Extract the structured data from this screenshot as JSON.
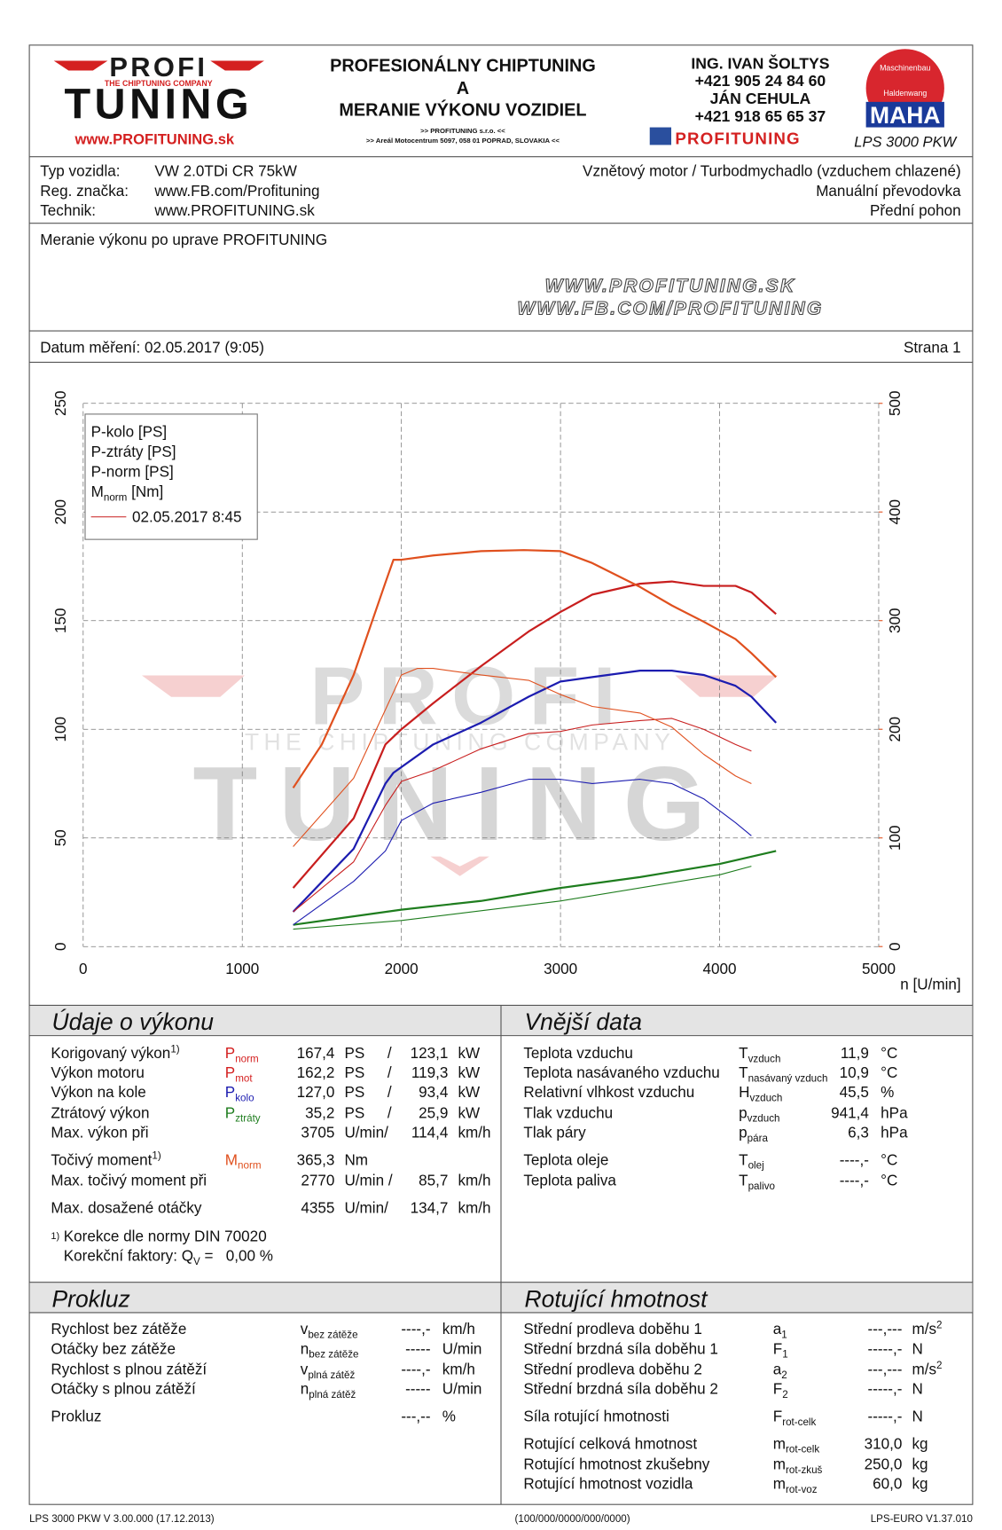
{
  "header": {
    "logo": {
      "top": "PROFI",
      "tagline": "THE CHIPTUNING COMPANY",
      "bottom": "TUNING",
      "url": "www.PROFITUNING.sk"
    },
    "center": [
      "PROFESIONÁLNY CHIPTUNING",
      "A",
      "MERANIE VÝKONU VOZIDIEL"
    ],
    "center_small": [
      ">> PROFITUNING s.r.o. <<",
      ">> Areál Motocentrum 5097, 058 01 POPRAD, SLOVAKIA <<"
    ],
    "contacts": [
      "ING. IVAN ŠOLTYS",
      "+421 905 24 84 60",
      "JÁN CEHULA",
      "+421 918 65 65 37"
    ],
    "fb": "PROFITUNING",
    "maha": {
      "ring_top": "Maschinenbau",
      "ring_bottom": "Haldenwang",
      "brand": "MAHA",
      "model": "LPS 3000 PKW"
    }
  },
  "vehicle": {
    "rows": [
      [
        "Typ vozidla:",
        "VW 2.0TDi CR 75kW",
        "Vznětový motor / Turbodmychadlo (vzduchem chlazené)"
      ],
      [
        "Reg. značka:",
        "www.FB.com/Profituning",
        "Manuální převodovka"
      ],
      [
        "Technik:",
        "www.PROFITUNING.sk",
        "Přední pohon"
      ]
    ]
  },
  "note": "Meranie výkonu po uprave PROFITUNING",
  "watermark_urls": [
    "WWW.PROFITUNING.SK",
    "WWW.FB.COM/PROFITUNING"
  ],
  "date_row": {
    "date": "Datum měření: 02.05.2017 (9:05)",
    "page": "Strana 1"
  },
  "chart_data": {
    "type": "line",
    "xlabel": "n [U/min]",
    "xlim": [
      0,
      5000
    ],
    "xticks": [
      0,
      1000,
      2000,
      3000,
      4000,
      5000
    ],
    "ylim": [
      0,
      250
    ],
    "yticks": [
      0,
      50,
      100,
      150,
      200,
      250
    ],
    "y2lim": [
      0,
      500
    ],
    "y2ticks": [
      0,
      100,
      200,
      300,
      400,
      500
    ],
    "y2_color": "#e0501e",
    "grid": true,
    "legend_position": "upper left",
    "legend_note": "02.05.2017 8:45",
    "legend_note_color": "#c81e1e",
    "watermark": {
      "top": "PROFI",
      "tagline": "THE CHIPTUNING COMPANY",
      "bottom": "TUNING"
    },
    "series": [
      {
        "name": "P-kolo [PS]",
        "color": "#1c1cb0",
        "width": 2,
        "x": [
          1320,
          1700,
          1900,
          1950,
          2200,
          2500,
          2800,
          3000,
          3200,
          3500,
          3700,
          3900,
          4100,
          4200,
          4355
        ],
        "values": [
          16,
          45,
          75,
          80,
          93,
          103,
          115,
          122,
          124,
          127,
          127,
          125,
          120,
          115,
          103
        ]
      },
      {
        "name": "P-ztráty [PS]",
        "color": "#1e7d1e",
        "width": 2,
        "x": [
          1320,
          2000,
          2500,
          3000,
          3500,
          4000,
          4355
        ],
        "values": [
          10,
          17,
          21,
          27,
          32,
          38,
          44
        ]
      },
      {
        "name": "P-norm [PS]",
        "color": "#c81e1e",
        "width": 2,
        "x": [
          1320,
          1700,
          1900,
          2000,
          2200,
          2500,
          2800,
          3000,
          3200,
          3500,
          3700,
          3900,
          4100,
          4200,
          4355
        ],
        "values": [
          27,
          59,
          93,
          100,
          112,
          129,
          145,
          154,
          162,
          167,
          168,
          166,
          166,
          163,
          153
        ]
      },
      {
        "name": "M",
        "name_sub": "norm",
        "name_suffix": " [Nm]",
        "color": "#e0501e",
        "width": 2,
        "axis": "y2",
        "x": [
          1320,
          1500,
          1700,
          1900,
          1950,
          2000,
          2200,
          2500,
          2770,
          3000,
          3200,
          3500,
          3700,
          3900,
          4100,
          4200,
          4355
        ],
        "values": [
          146,
          186,
          250,
          335,
          356,
          356,
          360,
          364,
          365,
          364,
          353,
          331,
          314,
          299,
          283,
          270,
          248
        ]
      },
      {
        "color": "#1c1cb0",
        "width": 1,
        "x": [
          1320,
          1700,
          1900,
          2000,
          2200,
          2500,
          2800,
          3000,
          3200,
          3500,
          3700,
          3900,
          4100,
          4200
        ],
        "values": [
          10,
          30,
          44,
          58,
          66,
          71,
          77,
          77,
          75,
          77,
          75,
          68,
          57,
          51
        ]
      },
      {
        "color": "#1e7d1e",
        "width": 1,
        "x": [
          1320,
          2000,
          3000,
          4000,
          4200
        ],
        "values": [
          8,
          12,
          21,
          33,
          37
        ]
      },
      {
        "color": "#c81e1e",
        "width": 1,
        "x": [
          1320,
          1700,
          1900,
          2000,
          2200,
          2500,
          2800,
          3000,
          3200,
          3500,
          3700,
          3900,
          4100,
          4200
        ],
        "values": [
          16,
          39,
          65,
          76,
          81,
          91,
          98,
          99,
          102,
          104,
          105,
          100,
          93,
          90
        ]
      },
      {
        "color": "#e0501e",
        "width": 1,
        "axis": "y2",
        "x": [
          1320,
          1700,
          1900,
          2000,
          2100,
          2200,
          2500,
          2800,
          3000,
          3200,
          3500,
          3700,
          3900,
          4100,
          4200
        ],
        "values": [
          92,
          155,
          218,
          250,
          256,
          256,
          250,
          245,
          232,
          221,
          215,
          202,
          177,
          157,
          150
        ]
      }
    ]
  },
  "performance": {
    "title": "Údaje o výkonu",
    "rows": [
      {
        "label": "Korigovaný výkon",
        "note": "1)",
        "symbol": {
          "s": "P",
          "sub": "norm"
        },
        "value": "167,4",
        "unit": "PS",
        "sep": "/",
        "value2": "123,1",
        "unit2": "kW",
        "color": "#d42020"
      },
      {
        "label": "Výkon motoru",
        "symbol": {
          "s": "P",
          "sub": "mot"
        },
        "value": "162,2",
        "unit": "PS",
        "sep": "/",
        "value2": "119,3",
        "unit2": "kW",
        "color": "#d42020"
      },
      {
        "label": "Výkon na kole",
        "symbol": {
          "s": "P",
          "sub": "kolo"
        },
        "value": "127,0",
        "unit": "PS",
        "sep": "/",
        "value2": "93,4",
        "unit2": "kW",
        "color": "#1c1cb0"
      },
      {
        "label": "Ztrátový výkon",
        "symbol": {
          "s": "P",
          "sub": "ztráty"
        },
        "value": "35,2",
        "unit": "PS",
        "sep": "/",
        "value2": "25,9",
        "unit2": "kW",
        "color": "#1e7d1e"
      },
      {
        "label": "Max. výkon při",
        "value": "3705",
        "unit": "U/min/",
        "value2": "114,4",
        "unit2": "km/h",
        "color": "#111111",
        "value_color": "#888888"
      },
      {
        "label": "Točivý moment",
        "note": "1)",
        "symbol": {
          "s": "M",
          "sub": "norm"
        },
        "value": "365,3",
        "unit": "Nm",
        "color": "#e0501e"
      },
      {
        "label": "Max. točivý moment při",
        "value": "2770",
        "unit": "U/min /",
        "value2": "85,7",
        "unit2": "km/h",
        "color": "#111111",
        "value_color": "#888888"
      },
      {
        "label": "Max. dosažené otáčky",
        "value": "4355",
        "unit": "U/min/",
        "value2": "134,7",
        "unit2": "km/h",
        "color": "#111111",
        "value_color": "#888888"
      }
    ],
    "footnote": {
      "mark": "1)",
      "text": "Korekce dle normy DIN 70020",
      "factor": "Korekční faktory: Q",
      "factor_sub": "V",
      "factor_value": " =   0,00 %"
    }
  },
  "external": {
    "title": "Vnější data",
    "rows": [
      {
        "label": "Teplota vzduchu",
        "symbol": {
          "s": "T",
          "sub": "vzduch"
        },
        "value": "11,9",
        "unit": "°C"
      },
      {
        "label": "Teplota nasávaného vzduchu",
        "symbol": {
          "s": "T",
          "sub": "nasávaný vzduch"
        },
        "value": "10,9",
        "unit": "°C"
      },
      {
        "label": "Relativní vlhkost vzduchu",
        "symbol": {
          "s": "H",
          "sub": "vzduch"
        },
        "value": "45,5",
        "unit": "%"
      },
      {
        "label": "Tlak vzduchu",
        "symbol": {
          "s": "p",
          "sub": "vzduch"
        },
        "value": "941,4",
        "unit": "hPa"
      },
      {
        "label": "Tlak páry",
        "symbol": {
          "s": "p",
          "sub": "pára"
        },
        "value": "6,3",
        "unit": "hPa"
      },
      {
        "label": "Teplota oleje",
        "symbol": {
          "s": "T",
          "sub": "olej"
        },
        "value": "----,-",
        "unit": "°C"
      },
      {
        "label": "Teplota paliva",
        "symbol": {
          "s": "T",
          "sub": "palivo"
        },
        "value": "----,-",
        "unit": "°C"
      }
    ]
  },
  "slip": {
    "title": "Prokluz",
    "rows": [
      {
        "label": "Rychlost bez zátěže",
        "symbol": {
          "s": "v",
          "sub": "bez zátěže"
        },
        "value": "----,-",
        "unit": "km/h"
      },
      {
        "label": "Otáčky bez zátěže",
        "symbol": {
          "s": "n",
          "sub": "bez zátěže"
        },
        "value": "-----",
        "unit": "U/min"
      },
      {
        "label": "Rychlost s plnou zátěží",
        "symbol": {
          "s": "v",
          "sub": "plná zátěž"
        },
        "value": "----,-",
        "unit": "km/h"
      },
      {
        "label": "Otáčky s plnou zátěží",
        "symbol": {
          "s": "n",
          "sub": "plná zátěž"
        },
        "value": "-----",
        "unit": "U/min"
      },
      {
        "label": "Prokluz",
        "value": "---,--",
        "unit": "%"
      }
    ]
  },
  "rotating": {
    "title": "Rotující hmotnost",
    "rows": [
      {
        "label": "Střední prodleva doběhu 1",
        "symbol": {
          "s": "a",
          "sub": "1"
        },
        "value": "---,---",
        "unit": "m/s",
        "unit_sup": "2"
      },
      {
        "label": "Střední brzdná síla doběhu 1",
        "symbol": {
          "s": "F",
          "sub": "1"
        },
        "value": "-----,-",
        "unit": "N"
      },
      {
        "label": "Střední prodleva doběhu 2",
        "symbol": {
          "s": "a",
          "sub": "2"
        },
        "value": "---,---",
        "unit": "m/s",
        "unit_sup": "2"
      },
      {
        "label": "Střední brzdná síla doběhu 2",
        "symbol": {
          "s": "F",
          "sub": "2"
        },
        "value": "-----,-",
        "unit": "N"
      },
      {
        "label": "Síla rotující hmotnosti",
        "symbol": {
          "s": "F",
          "sub": "rot-celk"
        },
        "value": "-----,-",
        "unit": "N"
      },
      {
        "label": "Rotující celková hmotnost",
        "symbol": {
          "s": "m",
          "sub": "rot-celk"
        },
        "value": "310,0",
        "unit": "kg"
      },
      {
        "label": "Rotující hmotnost zkušebny",
        "symbol": {
          "s": "m",
          "sub": "rot-zkuš"
        },
        "value": "250,0",
        "unit": "kg"
      },
      {
        "label": "Rotující hmotnost vozidla",
        "symbol": {
          "s": "m",
          "sub": "rot-voz"
        },
        "value": "60,0",
        "unit": "kg"
      }
    ]
  },
  "footer": [
    "LPS 3000 PKW V 3.00.000 (17.12.2013)",
    "(100/000/0000/000/0000)",
    "LPS-EURO V1.37.010"
  ]
}
